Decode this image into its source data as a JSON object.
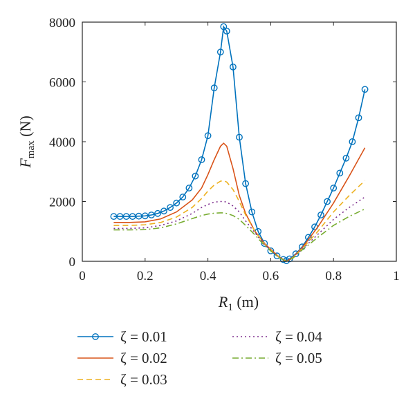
{
  "chart_data": {
    "type": "line",
    "xlabel": {
      "var": "R",
      "sub": "1",
      "unit": " (m)"
    },
    "ylabel": {
      "var": "F",
      "sub": "max",
      "unit": " (N)"
    },
    "xlim": [
      0,
      1
    ],
    "ylim": [
      0,
      8000
    ],
    "xticks": [
      "0",
      "0.2",
      "0.4",
      "0.6",
      "0.8",
      "1"
    ],
    "yticks": [
      "0",
      "2000",
      "4000",
      "6000",
      "8000"
    ],
    "grid": false,
    "legend_position": "below",
    "series": [
      {
        "name": "ζ = 0.01",
        "color": "#0072BD",
        "dash": "solid",
        "marker": "circle",
        "x": [
          0.1,
          0.12,
          0.14,
          0.16,
          0.18,
          0.2,
          0.22,
          0.24,
          0.26,
          0.28,
          0.3,
          0.32,
          0.34,
          0.36,
          0.38,
          0.4,
          0.42,
          0.44,
          0.45,
          0.46,
          0.48,
          0.5,
          0.52,
          0.54,
          0.56,
          0.58,
          0.6,
          0.62,
          0.64,
          0.65,
          0.66,
          0.68,
          0.7,
          0.72,
          0.74,
          0.76,
          0.78,
          0.8,
          0.82,
          0.84,
          0.86,
          0.88,
          0.9
        ],
        "y": [
          1500,
          1500,
          1500,
          1500,
          1510,
          1520,
          1550,
          1600,
          1680,
          1800,
          1950,
          2150,
          2450,
          2850,
          3400,
          4200,
          5800,
          7000,
          7850,
          7700,
          6500,
          4150,
          2600,
          1650,
          1000,
          600,
          350,
          180,
          60,
          20,
          80,
          250,
          480,
          800,
          1150,
          1550,
          2000,
          2450,
          2950,
          3450,
          4000,
          4800,
          5750
        ]
      },
      {
        "name": "ζ = 0.02",
        "color": "#D95319",
        "dash": "solid",
        "marker": "none",
        "x": [
          0.1,
          0.15,
          0.2,
          0.25,
          0.3,
          0.35,
          0.38,
          0.4,
          0.42,
          0.44,
          0.45,
          0.46,
          0.48,
          0.5,
          0.52,
          0.55,
          0.58,
          0.61,
          0.63,
          0.65,
          0.67,
          0.7,
          0.75,
          0.8,
          0.85,
          0.9
        ],
        "y": [
          1300,
          1300,
          1320,
          1420,
          1650,
          2050,
          2450,
          2900,
          3400,
          3850,
          3950,
          3850,
          3100,
          2200,
          1600,
          1000,
          600,
          300,
          120,
          0,
          130,
          450,
          1150,
          1950,
          2850,
          3800
        ]
      },
      {
        "name": "ζ = 0.03",
        "color": "#EDB120",
        "dash": "dashed",
        "marker": "none",
        "x": [
          0.1,
          0.15,
          0.2,
          0.25,
          0.3,
          0.35,
          0.38,
          0.4,
          0.42,
          0.44,
          0.45,
          0.46,
          0.48,
          0.5,
          0.52,
          0.55,
          0.58,
          0.61,
          0.63,
          0.65,
          0.67,
          0.7,
          0.75,
          0.8,
          0.85,
          0.9
        ],
        "y": [
          1200,
          1200,
          1220,
          1300,
          1480,
          1800,
          2100,
          2350,
          2550,
          2680,
          2700,
          2650,
          2400,
          2000,
          1550,
          1000,
          580,
          280,
          110,
          0,
          120,
          420,
          1000,
          1650,
          2200,
          2700
        ]
      },
      {
        "name": "ζ = 0.04",
        "color": "#7E2F8E",
        "dash": "dotted",
        "marker": "none",
        "x": [
          0.1,
          0.15,
          0.2,
          0.25,
          0.3,
          0.35,
          0.38,
          0.4,
          0.42,
          0.44,
          0.45,
          0.46,
          0.48,
          0.5,
          0.52,
          0.55,
          0.58,
          0.61,
          0.63,
          0.65,
          0.67,
          0.7,
          0.75,
          0.8,
          0.85,
          0.9
        ],
        "y": [
          1100,
          1100,
          1120,
          1200,
          1350,
          1600,
          1800,
          1900,
          1980,
          2000,
          2000,
          1980,
          1850,
          1650,
          1350,
          950,
          560,
          270,
          100,
          0,
          110,
          400,
          900,
          1400,
          1800,
          2150
        ]
      },
      {
        "name": "ζ = 0.05",
        "color": "#77AC30",
        "dash": "dashdot",
        "marker": "none",
        "x": [
          0.1,
          0.15,
          0.2,
          0.25,
          0.3,
          0.35,
          0.38,
          0.4,
          0.42,
          0.44,
          0.45,
          0.46,
          0.48,
          0.5,
          0.52,
          0.55,
          0.58,
          0.61,
          0.63,
          0.65,
          0.67,
          0.7,
          0.75,
          0.8,
          0.85,
          0.9
        ],
        "y": [
          1050,
          1050,
          1060,
          1120,
          1250,
          1430,
          1530,
          1580,
          1610,
          1620,
          1620,
          1600,
          1530,
          1400,
          1200,
          880,
          530,
          260,
          100,
          0,
          100,
          380,
          800,
          1200,
          1500,
          1750
        ]
      }
    ]
  }
}
